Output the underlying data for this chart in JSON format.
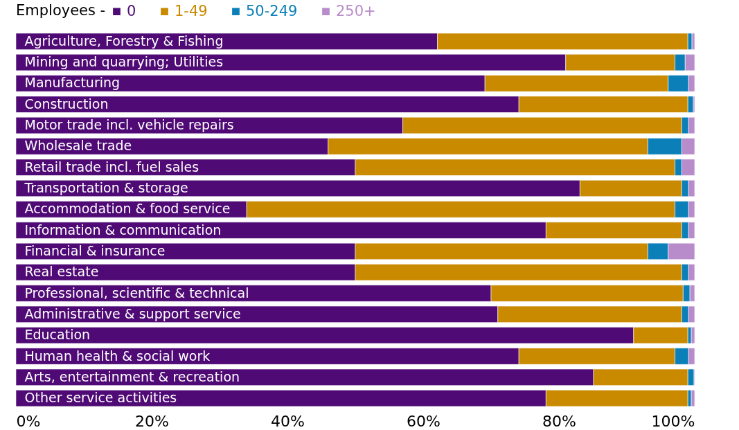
{
  "chart_data": {
    "type": "bar",
    "orientation": "horizontal",
    "stacked": true,
    "legend_title": "Employees - ",
    "legend": "top",
    "categories": [
      "Agriculture, Forestry & Fishing",
      "Mining and quarrying; Utilities",
      "Manufacturing",
      "Construction",
      "Motor trade incl. vehicle repairs",
      "Wholesale trade",
      "Retail trade incl. fuel sales",
      "Transportation & storage",
      "Accommodation & food service",
      "Information & communication",
      "Financial & insurance",
      "Real estate",
      "Professional, scientific & technical",
      "Administrative & support service",
      "Education",
      "Human health & social work",
      "Arts, entertainment & recreation",
      "Other service activities"
    ],
    "series": [
      {
        "name": "0",
        "color": "#4f0a75",
        "values": [
          62.1,
          81.0,
          69.1,
          74.1,
          57.0,
          46.0,
          50.0,
          83.1,
          34.0,
          78.1,
          50.0,
          50.0,
          70.0,
          71.0,
          91.0,
          74.1,
          85.1,
          78.1
        ]
      },
      {
        "name": "1-49",
        "color": "#c98a00",
        "values": [
          36.9,
          16.1,
          27.0,
          24.9,
          41.1,
          47.1,
          47.1,
          15.0,
          63.1,
          20.0,
          43.1,
          48.1,
          28.3,
          27.1,
          8.0,
          23.0,
          13.9,
          20.9
        ]
      },
      {
        "name": "50-249",
        "color": "#0a7fb8",
        "values": [
          0.6,
          1.5,
          3.0,
          0.8,
          1.0,
          5.0,
          1.0,
          1.0,
          2.0,
          1.0,
          3.0,
          1.0,
          1.0,
          1.0,
          0.5,
          2.0,
          0.9,
          0.5
        ]
      },
      {
        "name": "250+",
        "color": "#b88ccb",
        "values": [
          0.4,
          1.4,
          0.9,
          0.2,
          0.9,
          1.9,
          1.9,
          0.9,
          0.9,
          0.9,
          3.9,
          0.9,
          0.7,
          0.9,
          0.5,
          0.9,
          0.1,
          0.5
        ]
      }
    ],
    "xlim": [
      0,
      100
    ],
    "xticks": [
      {
        "value": 0,
        "label": "0%"
      },
      {
        "value": 20,
        "label": "20%"
      },
      {
        "value": 40,
        "label": "40%"
      },
      {
        "value": 60,
        "label": "60%"
      },
      {
        "value": 80,
        "label": "80%"
      },
      {
        "value": 100,
        "label": "100%"
      }
    ],
    "grid": false
  }
}
